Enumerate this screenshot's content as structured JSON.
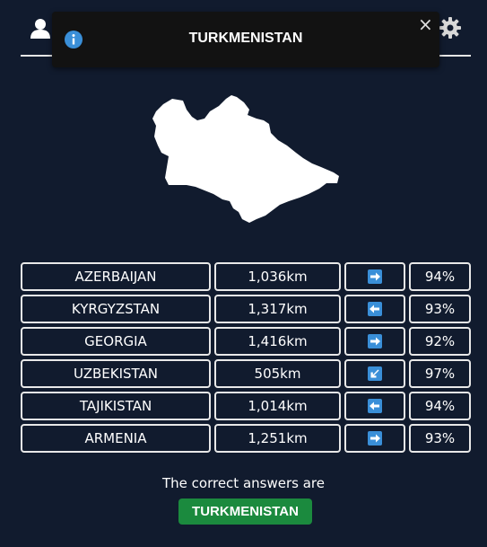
{
  "header": {
    "user_icon": "user-icon",
    "settings_icon": "gear-icon"
  },
  "toast": {
    "icon": "info-icon",
    "title": "TURKMENISTAN",
    "close_label": "×",
    "colors": {
      "background": "#121212",
      "icon": "#3a8fd8"
    }
  },
  "map": {
    "country": "Turkmenistan silhouette"
  },
  "guesses": [
    {
      "country": "AZERBAIJAN",
      "distance": "1,036km",
      "direction": "arrow-right",
      "proximity": "94%"
    },
    {
      "country": "KYRGYZSTAN",
      "distance": "1,317km",
      "direction": "arrow-left",
      "proximity": "93%"
    },
    {
      "country": "GEORGIA",
      "distance": "1,416km",
      "direction": "arrow-right",
      "proximity": "92%"
    },
    {
      "country": "UZBEKISTAN",
      "distance": "505km",
      "direction": "arrow-down-left",
      "proximity": "97%"
    },
    {
      "country": "TAJIKISTAN",
      "distance": "1,014km",
      "direction": "arrow-left",
      "proximity": "94%"
    },
    {
      "country": "ARMENIA",
      "distance": "1,251km",
      "direction": "arrow-right",
      "proximity": "93%"
    }
  ],
  "result": {
    "text": "The correct answers are",
    "answer": "TURKMENISTAN",
    "answer_color": "#1b8a3e"
  },
  "colors": {
    "background": "#111b2e",
    "border": "#e8e8e8",
    "arrow_tile": "#3a8fd8"
  }
}
